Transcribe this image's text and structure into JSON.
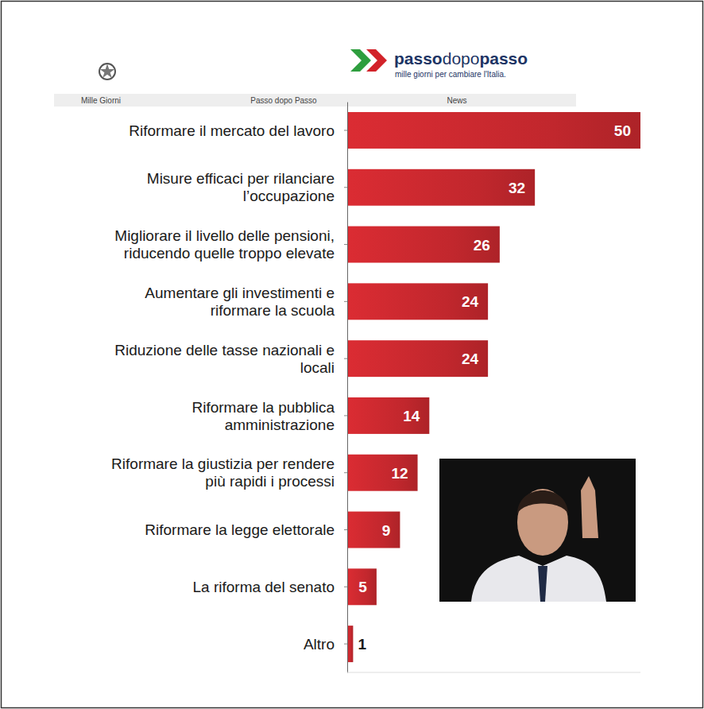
{
  "header": {
    "brand": [
      "passo",
      "dopo",
      "passo"
    ],
    "tagline": "mille giorni per cambiare l'Italia.",
    "nav": [
      "Mille Giorni",
      "Passo dopo Passo",
      "News"
    ]
  },
  "chart_data": {
    "type": "bar",
    "orientation": "horizontal",
    "categories": [
      "Riformare il mercato del lavoro",
      "Misure efficaci per rilanciare\nl’occupazione",
      "Migliorare il livello delle pensioni,\nriducendo quelle troppo elevate",
      "Aumentare gli investimenti e\nriformare la scuola",
      "Riduzione delle tasse nazionali e\nlocali",
      "Riformare la pubblica\namministrazione",
      "Riformare la giustizia per rendere\npiù rapidi i processi",
      "Riformare la legge elettorale",
      "La riforma del senato",
      "Altro"
    ],
    "values": [
      50,
      32,
      26,
      24,
      24,
      14,
      12,
      9,
      5,
      1
    ],
    "color": "#c1272d",
    "xlim": [
      0,
      50
    ],
    "data_labels": true,
    "tick_labels": "y",
    "grid": false
  }
}
